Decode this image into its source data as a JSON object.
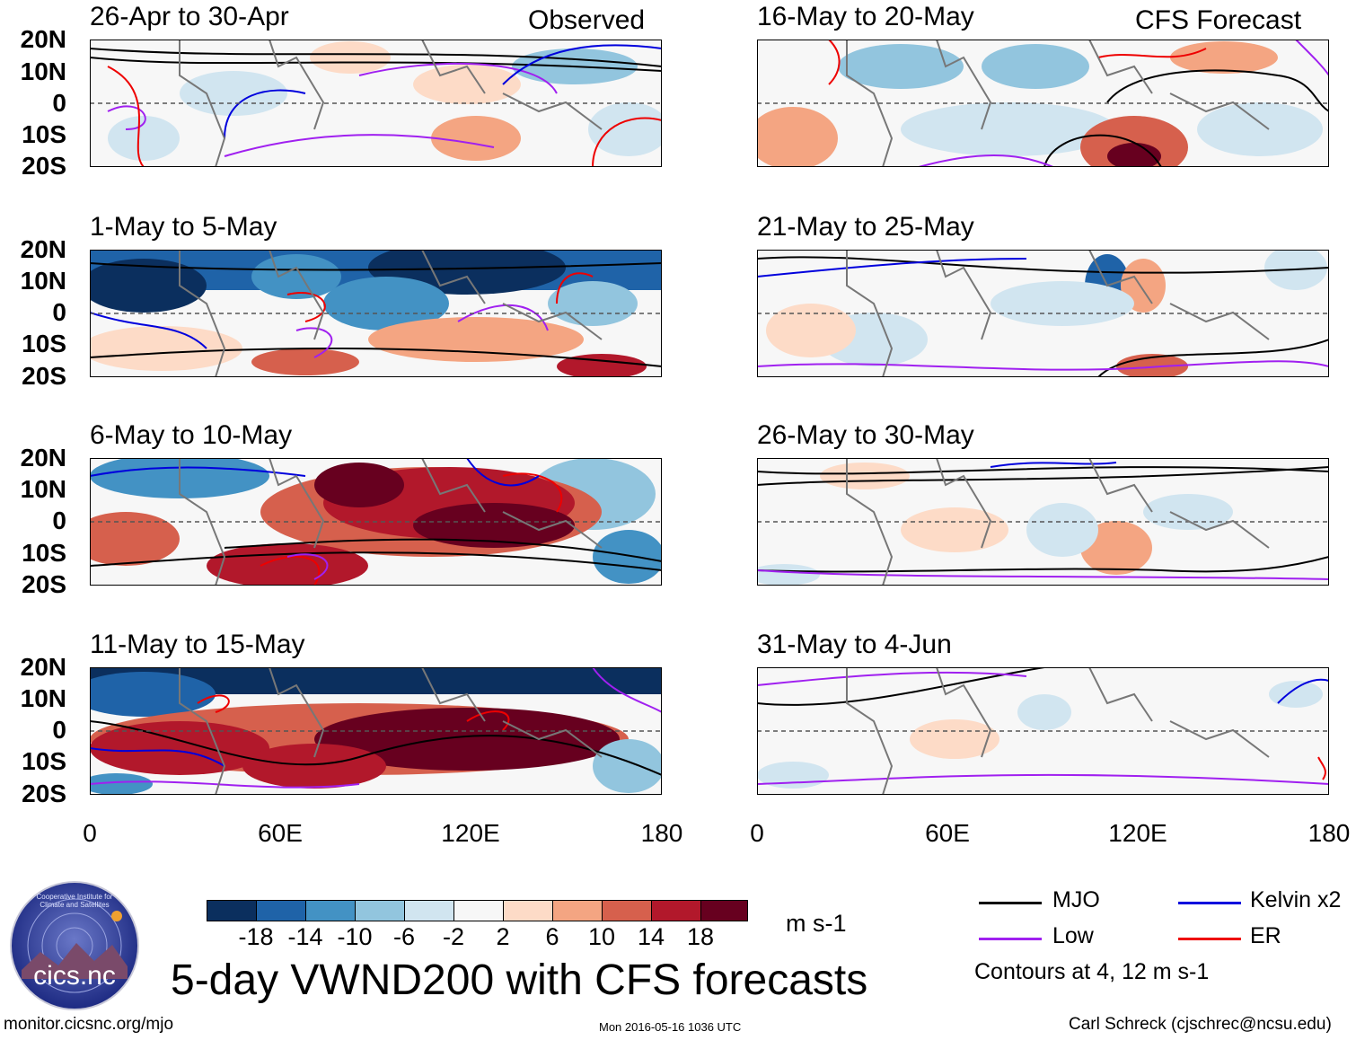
{
  "header": {
    "observed_label": "Observed",
    "forecast_label": "CFS Forecast"
  },
  "panels_left": [
    {
      "title": "26-Apr to 30-Apr"
    },
    {
      "title": "1-May to 5-May"
    },
    {
      "title": "6-May to 10-May"
    },
    {
      "title": "11-May to 15-May"
    }
  ],
  "panels_right": [
    {
      "title": "16-May to 20-May"
    },
    {
      "title": "21-May to 25-May"
    },
    {
      "title": "26-May to 30-May"
    },
    {
      "title": "31-May to 4-Jun"
    }
  ],
  "axes": {
    "lat_labels": [
      "20N",
      "10N",
      "0",
      "10S",
      "20S"
    ],
    "lon_labels": [
      "0",
      "60E",
      "120E",
      "180"
    ]
  },
  "colorbar": {
    "colors": [
      "#0b2f5e",
      "#1f63a8",
      "#4392c4",
      "#92c5de",
      "#d1e5f0",
      "#f7f7f7",
      "#fddbc7",
      "#f4a582",
      "#d6604d",
      "#b2182b",
      "#67001f"
    ],
    "labels": [
      "-18",
      "-14",
      "-10",
      "-6",
      "-2",
      "2",
      "6",
      "10",
      "14",
      "18"
    ],
    "units": "m s-1"
  },
  "title": "5-day VWND200 with CFS forecasts",
  "legend": {
    "items": [
      {
        "label": "MJO",
        "color": "#000000"
      },
      {
        "label": "Kelvin x2",
        "color": "#0000dd"
      },
      {
        "label": "Low",
        "color": "#a020f0"
      },
      {
        "label": "ER",
        "color": "#ee0000"
      }
    ],
    "note": "Contours at 4, 12 m s-1"
  },
  "logo": {
    "text": "cics.nc",
    "ring_text": "Cooperative Institute for Climate and Satellites"
  },
  "footer": {
    "left": "monitor.cicsnc.org/mjo",
    "center": "Mon 2016-05-16 1036 UTC",
    "right": "Carl Schreck (cjschrec@ncsu.edu)"
  }
}
